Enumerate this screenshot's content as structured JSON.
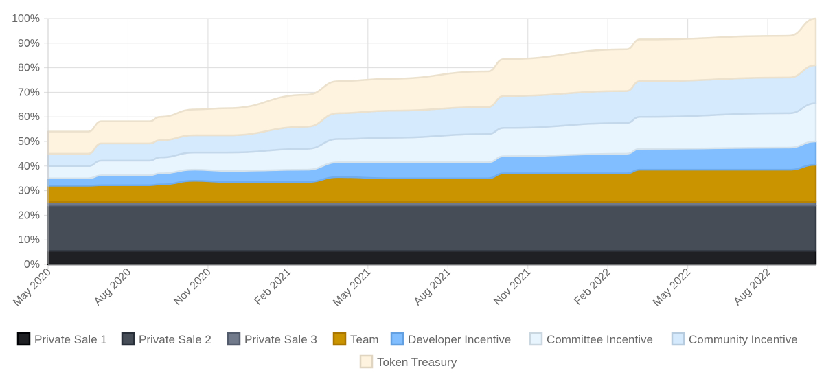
{
  "chart_data": {
    "type": "area",
    "stacked": true,
    "x_labels": [
      "May 2020",
      "Aug 2020",
      "Nov 2020",
      "Feb 2021",
      "May 2021",
      "Aug 2021",
      "Nov 2021",
      "Feb 2022",
      "May 2022",
      "Aug 2022"
    ],
    "x_range": [
      0,
      28.8
    ],
    "ylim": [
      0,
      100
    ],
    "y_ticks": [
      0,
      10,
      20,
      30,
      40,
      50,
      60,
      70,
      80,
      90,
      100
    ],
    "y_tick_suffix": "%",
    "grid": true,
    "legend_position": "bottom",
    "series": [
      {
        "name": "Private Sale 1",
        "color": "#1f2024",
        "x": [
          0,
          28.8
        ],
        "values": [
          5.5,
          5.5
        ]
      },
      {
        "name": "Private Sale 2",
        "color": "#474d57",
        "x": [
          0,
          28.8
        ],
        "values": [
          18.5,
          18.5
        ]
      },
      {
        "name": "Private Sale 3",
        "color": "#707a8a",
        "x": [
          0,
          28.8
        ],
        "values": [
          1.5,
          1.5
        ]
      },
      {
        "name": "Team",
        "color": "#c99400",
        "x": [
          0,
          1.5,
          2,
          3.8,
          4.2,
          5.5,
          6.7,
          9.7,
          10.9,
          12.8,
          16.5,
          17.1,
          21.7,
          22.2,
          27.8,
          28.8
        ],
        "values": [
          6.5,
          6.5,
          6.7,
          6.7,
          7.0,
          8.5,
          8.0,
          8.0,
          10.0,
          9.5,
          9.5,
          11.5,
          11.5,
          13.0,
          13.0,
          15.0
        ]
      },
      {
        "name": "Developer Incentive",
        "color": "#80beff",
        "x": [
          0,
          1.5,
          2,
          3.8,
          4.2,
          5.5,
          6.7,
          9.7,
          10.9,
          12.8,
          16.5,
          17.1,
          21.7,
          22.2,
          27.8,
          28.8
        ],
        "values": [
          3.0,
          3.0,
          4.0,
          4.0,
          4.5,
          4.5,
          4.5,
          5.0,
          6.0,
          6.5,
          6.5,
          7.0,
          8.0,
          8.5,
          9.0,
          9.5
        ]
      },
      {
        "name": "Committee Incentive",
        "color": "#e8f4fe",
        "x": [
          0,
          1.5,
          2,
          3.8,
          4.2,
          5.5,
          6.7,
          9.7,
          10.9,
          12.8,
          16.5,
          17.1,
          21.7,
          22.2,
          27.8,
          28.8
        ],
        "values": [
          5.0,
          5.0,
          6.0,
          6.0,
          6.5,
          7.0,
          7.5,
          8.5,
          9.5,
          10.0,
          11.5,
          11.5,
          12.5,
          13.0,
          14.0,
          15.5
        ]
      },
      {
        "name": "Community Incentive",
        "color": "#d6eafd",
        "x": [
          0,
          1.5,
          2,
          3.8,
          4.2,
          5.5,
          6.7,
          9.7,
          10.9,
          12.8,
          16.5,
          17.1,
          21.7,
          22.2,
          27.8,
          28.8
        ],
        "values": [
          5.0,
          5.0,
          7.0,
          7.0,
          7.0,
          7.0,
          7.0,
          9.0,
          10.5,
          11.0,
          11.0,
          13.0,
          13.0,
          14.5,
          14.5,
          15.5
        ]
      },
      {
        "name": "Token Treasury",
        "color": "#fdf3de",
        "x": [
          0,
          1.5,
          2,
          3.8,
          4.2,
          5.5,
          6.7,
          9.7,
          10.9,
          12.8,
          16.5,
          17.1,
          21.7,
          22.2,
          27.8,
          28.8
        ],
        "values": [
          9.0,
          9.0,
          9.0,
          9.0,
          9.5,
          10.5,
          11.0,
          13.0,
          13.0,
          13.0,
          14.5,
          15.0,
          17.0,
          17.0,
          17.0,
          19.0
        ]
      }
    ]
  }
}
